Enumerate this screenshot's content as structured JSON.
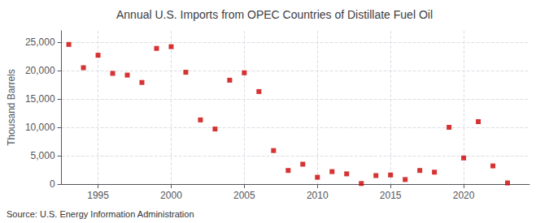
{
  "chart_data": {
    "type": "scatter",
    "title": "Annual U.S. Imports from OPEC Countries of Distillate Fuel Oil",
    "ylabel": "Thousand Barrels",
    "annotation": "Source: U.S. Energy Information Administration",
    "x": [
      1993,
      1994,
      1995,
      1996,
      1997,
      1998,
      1999,
      2000,
      2001,
      2002,
      2003,
      2004,
      2005,
      2006,
      2007,
      2008,
      2009,
      2010,
      2011,
      2012,
      2013,
      2014,
      2015,
      2016,
      2017,
      2018,
      2019,
      2020,
      2021,
      2022,
      2023
    ],
    "values": [
      24600,
      20500,
      22700,
      19500,
      19200,
      17900,
      23900,
      24200,
      19700,
      11300,
      9700,
      18300,
      19600,
      16300,
      5900,
      2400,
      3500,
      1200,
      2200,
      1800,
      100,
      1500,
      1600,
      800,
      2400,
      2100,
      10000,
      4600,
      11000,
      3200,
      200
    ],
    "color": "#cc0000",
    "marker": "square",
    "xlim": [
      1992.5,
      2024.5
    ],
    "xticks": [
      1995,
      2000,
      2005,
      2010,
      2015,
      2020
    ],
    "ylim": [
      0,
      27000
    ],
    "yticks": [
      0,
      {
        "value": 5000,
        "label": "5,000"
      },
      {
        "value": 10000,
        "label": "10,000"
      },
      {
        "value": 15000,
        "label": "15,000"
      },
      {
        "value": 20000,
        "label": "20,000"
      },
      {
        "value": 25000,
        "label": "25,000"
      }
    ],
    "grid": true
  }
}
